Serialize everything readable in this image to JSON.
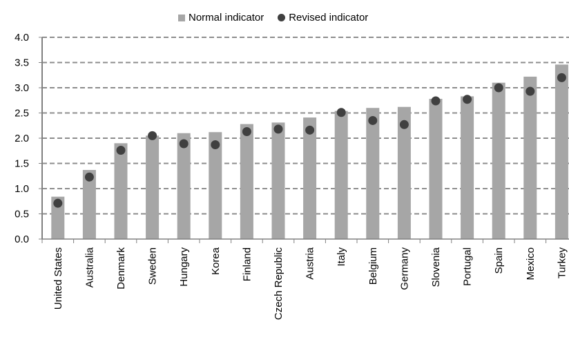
{
  "chart_data": {
    "type": "bar",
    "categories": [
      "United States",
      "Australia",
      "Denmark",
      "Sweden",
      "Hungary",
      "Korea",
      "Finland",
      "Czech Republic",
      "Austria",
      "Italy",
      "Belgium",
      "Germany",
      "Slovenia",
      "Portugal",
      "Spain",
      "Mexico",
      "Turkey"
    ],
    "series": [
      {
        "name": "Normal indicator",
        "kind": "bar",
        "color": "#a6a6a6",
        "values": [
          0.84,
          1.37,
          1.9,
          2.05,
          2.1,
          2.12,
          2.28,
          2.31,
          2.41,
          2.54,
          2.6,
          2.62,
          2.78,
          2.83,
          3.1,
          3.22,
          3.46
        ]
      },
      {
        "name": "Revised indicator",
        "kind": "marker",
        "color": "#404040",
        "values": [
          0.71,
          1.23,
          1.76,
          2.05,
          1.89,
          1.87,
          2.13,
          2.18,
          2.16,
          2.51,
          2.35,
          2.27,
          2.74,
          2.77,
          3.0,
          2.93,
          3.2
        ]
      }
    ],
    "y_ticks": [
      "0.0",
      "0.5",
      "1.0",
      "1.5",
      "2.0",
      "2.5",
      "3.0",
      "3.5",
      "4.0"
    ],
    "ylim": [
      0,
      4
    ],
    "grid": true,
    "legend_position": "top"
  }
}
